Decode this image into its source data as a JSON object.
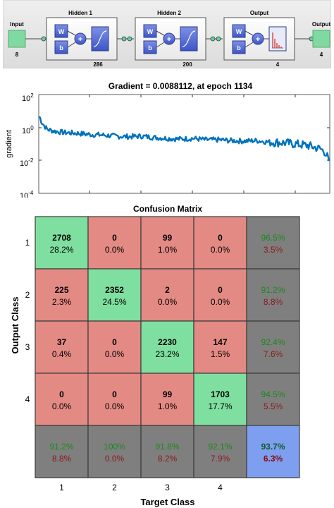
{
  "network": {
    "input": {
      "label": "Input",
      "size": "8"
    },
    "layers": [
      {
        "title": "Hidden 1",
        "size": "286",
        "transfer": "sigmoid"
      },
      {
        "title": "Hidden 2",
        "size": "200",
        "transfer": "sigmoid"
      },
      {
        "title": "Output",
        "size": "4",
        "transfer": "softmax"
      }
    ],
    "output": {
      "label": "Output",
      "size": "4"
    },
    "weight_label": "W",
    "bias_label": "b",
    "sum_symbol": "+"
  },
  "gradient_plot": {
    "title": "Gradient = 0.0088112, at epoch 1134",
    "ylabel": "gradient",
    "yticks": [
      {
        "base": "10",
        "exp": "2"
      },
      {
        "base": "10",
        "exp": "0"
      },
      {
        "base": "10",
        "exp": "-2"
      },
      {
        "base": "10",
        "exp": "-4"
      }
    ]
  },
  "confusion": {
    "title": "Confusion Matrix",
    "xlabel": "Target Class",
    "ylabel": "Output Class",
    "classes": [
      "1",
      "2",
      "3",
      "4"
    ],
    "counts": [
      [
        "2708",
        "0",
        "99",
        "0"
      ],
      [
        "225",
        "2352",
        "2",
        "0"
      ],
      [
        "37",
        "0",
        "2230",
        "147"
      ],
      [
        "0",
        "0",
        "99",
        "1703"
      ]
    ],
    "percents": [
      [
        "28.2%",
        "0.0%",
        "1.0%",
        "0.0%"
      ],
      [
        "2.3%",
        "24.5%",
        "0.0%",
        "0.0%"
      ],
      [
        "0.4%",
        "0.0%",
        "23.2%",
        "1.5%"
      ],
      [
        "0.0%",
        "0.0%",
        "1.0%",
        "17.7%"
      ]
    ],
    "row_summary": [
      {
        "correct": "96.5%",
        "wrong": "3.5%"
      },
      {
        "correct": "91.2%",
        "wrong": "8.8%"
      },
      {
        "correct": "92.4%",
        "wrong": "7.6%"
      },
      {
        "correct": "94.5%",
        "wrong": "5.5%"
      }
    ],
    "col_summary": [
      {
        "correct": "91.2%",
        "wrong": "8.8%"
      },
      {
        "correct": "100%",
        "wrong": "0.0%"
      },
      {
        "correct": "91.8%",
        "wrong": "8.2%"
      },
      {
        "correct": "92.1%",
        "wrong": "7.9%"
      }
    ],
    "overall": {
      "correct": "93.7%",
      "wrong": "6.3%"
    }
  },
  "chart_data": [
    {
      "type": "line",
      "title": "Gradient = 0.0088112, at epoch 1134",
      "xlabel": "",
      "ylabel": "gradient",
      "yscale": "log",
      "ylim": [
        0.0001,
        100
      ],
      "xlim": [
        0,
        1134
      ],
      "grid": false,
      "series": [
        {
          "color": "#0072bd",
          "x": [
            0,
            10,
            30,
            60,
            100,
            150,
            200,
            250,
            300,
            350,
            400,
            450,
            500,
            550,
            600,
            650,
            700,
            750,
            800,
            850,
            900,
            950,
            1000,
            1050,
            1080,
            1100,
            1120,
            1134
          ],
          "y": [
            5,
            2,
            0.8,
            0.6,
            0.5,
            0.45,
            0.38,
            0.35,
            0.3,
            0.28,
            0.3,
            0.25,
            0.22,
            0.2,
            0.22,
            0.18,
            0.18,
            0.16,
            0.15,
            0.16,
            0.13,
            0.12,
            0.1,
            0.08,
            0.06,
            0.05,
            0.03,
            0.0088112
          ]
        }
      ]
    },
    {
      "type": "heatmap",
      "title": "Confusion Matrix",
      "xlabel": "Target Class",
      "ylabel": "Output Class",
      "x_categories": [
        "1",
        "2",
        "3",
        "4"
      ],
      "y_categories": [
        "1",
        "2",
        "3",
        "4"
      ],
      "values": [
        [
          2708,
          0,
          99,
          0
        ],
        [
          225,
          2352,
          2,
          0
        ],
        [
          37,
          0,
          2230,
          147
        ],
        [
          0,
          0,
          99,
          1703
        ]
      ],
      "colors": {
        "correct": "#7fdfa0",
        "incorrect": "#e38a85",
        "summary": "#7f7f7f",
        "overall": "#7e9ff0",
        "correct_text": "#1b8a1b",
        "wrong_text": "#8b1a1a"
      }
    }
  ]
}
